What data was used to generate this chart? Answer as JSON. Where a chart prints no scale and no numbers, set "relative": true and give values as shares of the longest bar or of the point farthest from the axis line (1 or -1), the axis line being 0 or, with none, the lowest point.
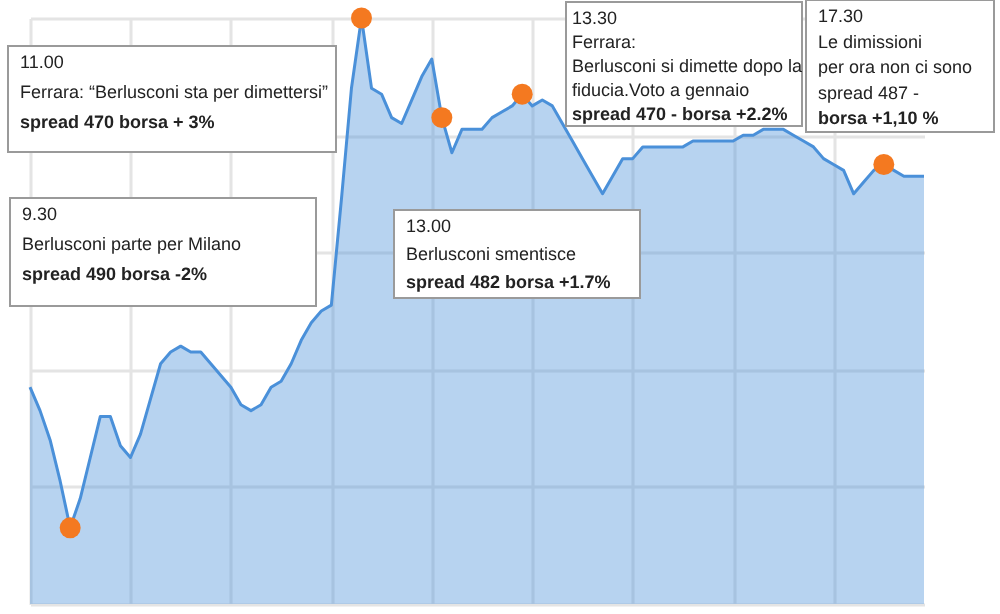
{
  "chart_data": {
    "type": "area",
    "relative": true,
    "grid": true,
    "categories": [
      null,
      null,
      null,
      null,
      null,
      null,
      null,
      null,
      null,
      null,
      null,
      null,
      null,
      null,
      null,
      null,
      null,
      null,
      null,
      null,
      null,
      null,
      null,
      null,
      null,
      null,
      null,
      null,
      null,
      null,
      null,
      null,
      null,
      null,
      null,
      null,
      null,
      null,
      null,
      null,
      null,
      null,
      null,
      null,
      null,
      null,
      null,
      null,
      null,
      null,
      null,
      null,
      null,
      null,
      null,
      null,
      null,
      null,
      null,
      null,
      null,
      null,
      null,
      null,
      null,
      null,
      null,
      null,
      null,
      null,
      null,
      null,
      null,
      null,
      null,
      null,
      null,
      null,
      null,
      null,
      null,
      null,
      null,
      null,
      null,
      null,
      null,
      null,
      null,
      null
    ],
    "series": [
      {
        "color": "#4a90d9",
        "values": [
          0.37,
          0.33,
          0.28,
          0.21,
          0.13,
          0.18,
          0.25,
          0.32,
          0.32,
          0.27,
          0.25,
          0.29,
          0.35,
          0.41,
          0.43,
          0.44,
          0.43,
          0.43,
          0.41,
          0.39,
          0.37,
          0.34,
          0.33,
          0.34,
          0.37,
          0.38,
          0.41,
          0.45,
          0.48,
          0.5,
          0.51,
          0.69,
          0.88,
          1,
          0.88,
          0.87,
          0.83,
          0.82,
          0.86,
          0.9,
          0.93,
          0.83,
          0.77,
          0.81,
          0.81,
          0.81,
          0.83,
          0.84,
          0.85,
          0.87,
          0.85,
          0.86,
          0.85,
          0.82,
          0.79,
          0.76,
          0.73,
          0.7,
          0.73,
          0.76,
          0.76,
          0.78,
          0.78,
          0.78,
          0.78,
          0.78,
          0.79,
          0.79,
          0.79,
          0.79,
          0.79,
          0.8,
          0.8,
          0.81,
          0.81,
          0.81,
          0.8,
          0.79,
          0.78,
          0.76,
          0.75,
          0.74,
          0.7,
          0.72,
          0.74,
          0.75,
          0.74,
          0.73,
          0.73,
          0.73
        ]
      }
    ],
    "annotations": [
      "11.00\nFerrara: “Berlusconi sta per dimettersi”\nspread 470 borsa + 3%",
      "9.30\nBerlusconi parte per Milano\nspread 490 borsa -2%",
      "13.00\nBerlusconi smentisce\nspread 482 borsa +1.7%",
      "13.30\nFerrara:\nBerlusconi si dimette dopo la\n fiducia.Voto a gennaio\nspread 470 - borsa +2.2%",
      "17.30\nLe dimissioni\nper ora non ci sono\nspread 487 -\nborsa +1,10 %"
    ]
  }
}
